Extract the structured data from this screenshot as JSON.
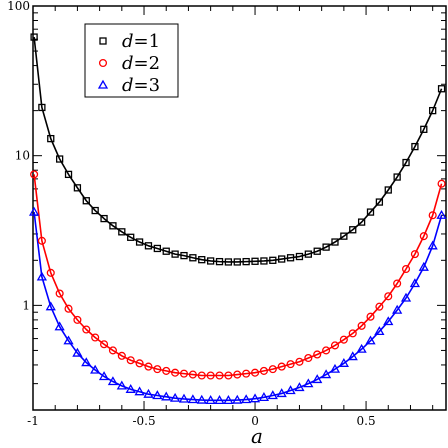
{
  "chart_data": {
    "type": "scatter",
    "title": "",
    "xlabel": "a",
    "ylabel": "",
    "xlim": [
      -1,
      0.86
    ],
    "ylim": [
      0.2,
      100
    ],
    "yscale": "log",
    "grid": false,
    "legend_position": "top-left",
    "x_ticks": [
      -1,
      -0.5,
      0,
      0.5
    ],
    "x_tick_labels": [
      "-1",
      "-0.5",
      "0",
      "0.5"
    ],
    "y_ticks": [
      1,
      10,
      100
    ],
    "y_tick_labels": [
      "1",
      "10",
      "100"
    ],
    "series": [
      {
        "name": "d=1",
        "marker": "square",
        "color": "#000000",
        "x": [
          -0.995,
          -0.96,
          -0.92,
          -0.88,
          -0.84,
          -0.8,
          -0.76,
          -0.72,
          -0.68,
          -0.64,
          -0.6,
          -0.56,
          -0.52,
          -0.48,
          -0.44,
          -0.4,
          -0.36,
          -0.32,
          -0.28,
          -0.24,
          -0.2,
          -0.16,
          -0.12,
          -0.08,
          -0.04,
          0.0,
          0.04,
          0.08,
          0.12,
          0.16,
          0.2,
          0.24,
          0.28,
          0.32,
          0.36,
          0.4,
          0.44,
          0.48,
          0.52,
          0.56,
          0.6,
          0.64,
          0.68,
          0.72,
          0.76,
          0.8,
          0.84
        ],
        "y": [
          62,
          21,
          13,
          9.5,
          7.5,
          6.1,
          5.0,
          4.3,
          3.8,
          3.4,
          3.1,
          2.85,
          2.65,
          2.5,
          2.4,
          2.3,
          2.2,
          2.15,
          2.08,
          2.02,
          1.98,
          1.96,
          1.95,
          1.95,
          1.96,
          1.97,
          1.98,
          2.0,
          2.04,
          2.08,
          2.12,
          2.2,
          2.3,
          2.45,
          2.65,
          2.9,
          3.2,
          3.6,
          4.2,
          4.9,
          5.9,
          7.2,
          9.0,
          11.5,
          15,
          20,
          28
        ]
      },
      {
        "name": "d=2",
        "marker": "circle",
        "color": "#ff0000",
        "x": [
          -0.995,
          -0.96,
          -0.92,
          -0.88,
          -0.84,
          -0.8,
          -0.76,
          -0.72,
          -0.68,
          -0.64,
          -0.6,
          -0.56,
          -0.52,
          -0.48,
          -0.44,
          -0.4,
          -0.36,
          -0.32,
          -0.28,
          -0.24,
          -0.2,
          -0.16,
          -0.12,
          -0.08,
          -0.04,
          0.0,
          0.04,
          0.08,
          0.12,
          0.16,
          0.2,
          0.24,
          0.28,
          0.32,
          0.36,
          0.4,
          0.44,
          0.48,
          0.52,
          0.56,
          0.6,
          0.64,
          0.68,
          0.72,
          0.76,
          0.8,
          0.84
        ],
        "y": [
          7.5,
          2.7,
          1.65,
          1.2,
          0.95,
          0.8,
          0.69,
          0.61,
          0.55,
          0.5,
          0.46,
          0.43,
          0.41,
          0.39,
          0.375,
          0.365,
          0.355,
          0.35,
          0.345,
          0.34,
          0.34,
          0.34,
          0.34,
          0.345,
          0.35,
          0.355,
          0.365,
          0.375,
          0.39,
          0.405,
          0.42,
          0.445,
          0.47,
          0.5,
          0.54,
          0.59,
          0.65,
          0.73,
          0.84,
          0.98,
          1.15,
          1.4,
          1.75,
          2.2,
          2.9,
          4.0,
          6.5
        ]
      },
      {
        "name": "d=3",
        "marker": "triangle",
        "color": "#0000ff",
        "x": [
          -0.995,
          -0.96,
          -0.92,
          -0.88,
          -0.84,
          -0.8,
          -0.76,
          -0.72,
          -0.68,
          -0.64,
          -0.6,
          -0.56,
          -0.52,
          -0.48,
          -0.44,
          -0.4,
          -0.36,
          -0.32,
          -0.28,
          -0.24,
          -0.2,
          -0.16,
          -0.12,
          -0.08,
          -0.04,
          0.0,
          0.04,
          0.08,
          0.12,
          0.16,
          0.2,
          0.24,
          0.28,
          0.32,
          0.36,
          0.4,
          0.44,
          0.48,
          0.52,
          0.56,
          0.6,
          0.64,
          0.68,
          0.72,
          0.76,
          0.8,
          0.84
        ],
        "y": [
          4.2,
          1.55,
          0.98,
          0.72,
          0.58,
          0.48,
          0.415,
          0.37,
          0.335,
          0.31,
          0.29,
          0.275,
          0.265,
          0.255,
          0.25,
          0.245,
          0.24,
          0.237,
          0.235,
          0.233,
          0.232,
          0.232,
          0.232,
          0.233,
          0.235,
          0.238,
          0.243,
          0.25,
          0.258,
          0.27,
          0.283,
          0.3,
          0.32,
          0.345,
          0.375,
          0.41,
          0.455,
          0.51,
          0.58,
          0.67,
          0.78,
          0.93,
          1.12,
          1.4,
          1.8,
          2.5,
          4.0
        ]
      }
    ]
  }
}
